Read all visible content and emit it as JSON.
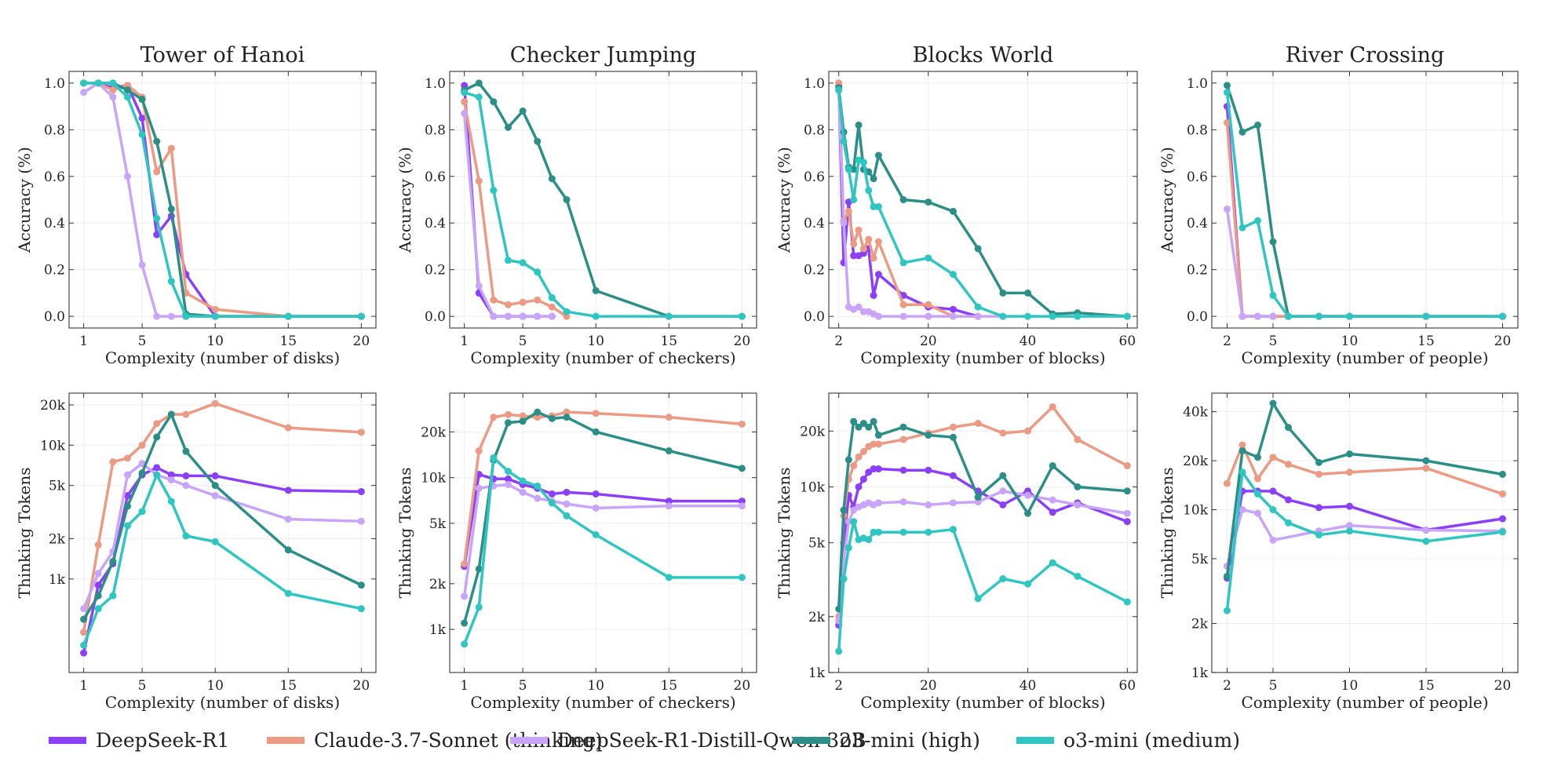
{
  "colors": {
    "DeepSeek-R1": "#8b3ffb",
    "Claude-3.7-Sonnet (thinking)": "#ec9a84",
    "DeepSeek-R1-Distill-Qwen-32B": "#c9a4fb",
    "o3-mini (high)": "#2b8f87",
    "o3-mini (medium)": "#2fc6c1"
  },
  "legend": {
    "placement": "bottom",
    "items": [
      "DeepSeek-R1",
      "Claude-3.7-Sonnet (thinking)",
      "DeepSeek-R1-Distill-Qwen-32B",
      "o3-mini (high)",
      "o3-mini (medium)"
    ]
  },
  "chart_data": [
    {
      "type": "line",
      "title": "Tower of Hanoi",
      "xlabel": "Complexity (number of disks)",
      "ylabel": "Accuracy (%)",
      "xlim": [
        0,
        21
      ],
      "ylim": [
        -0.05,
        1.05
      ],
      "yscale": "linear",
      "grid": true,
      "xticks": [
        1,
        5,
        10,
        15,
        20
      ],
      "xtick_labels": [
        "1",
        "5",
        "10",
        "15",
        "20"
      ],
      "yticks": [
        0,
        0.2,
        0.4,
        0.6,
        0.8,
        1.0
      ],
      "ytick_labels": [
        "0.0",
        "0.2",
        "0.4",
        "0.6",
        "0.8",
        "1.0"
      ],
      "x": [
        1,
        2,
        3,
        4,
        5,
        6,
        7,
        8,
        10,
        15,
        20
      ],
      "series": [
        {
          "name": "DeepSeek-R1",
          "values": [
            1,
            1,
            0.98,
            0.99,
            0.85,
            0.35,
            0.43,
            0.18,
            0,
            0,
            0
          ]
        },
        {
          "name": "Claude-3.7-Sonnet (thinking)",
          "values": [
            1,
            1,
            0.97,
            0.99,
            0.94,
            0.62,
            0.72,
            0.1,
            0.03,
            0,
            0
          ]
        },
        {
          "name": "DeepSeek-R1-Distill-Qwen-32B",
          "values": [
            0.96,
            1,
            0.94,
            0.6,
            0.22,
            0,
            0,
            0,
            0,
            0,
            0
          ]
        },
        {
          "name": "o3-mini (high)",
          "values": [
            1,
            1,
            1,
            0.97,
            0.93,
            0.75,
            0.46,
            0.01,
            0,
            0,
            0
          ]
        },
        {
          "name": "o3-mini (medium)",
          "values": [
            1,
            1,
            1,
            0.94,
            0.78,
            0.42,
            0.15,
            0,
            0,
            0,
            0
          ]
        }
      ]
    },
    {
      "type": "line",
      "title": "Checker Jumping",
      "xlabel": "Complexity (number of checkers)",
      "ylabel": "Accuracy (%)",
      "xlim": [
        0,
        21
      ],
      "ylim": [
        -0.05,
        1.05
      ],
      "yscale": "linear",
      "grid": true,
      "xticks": [
        1,
        5,
        10,
        15,
        20
      ],
      "xtick_labels": [
        "1",
        "5",
        "10",
        "15",
        "20"
      ],
      "yticks": [
        0,
        0.2,
        0.4,
        0.6,
        0.8,
        1.0
      ],
      "ytick_labels": [
        "0.0",
        "0.2",
        "0.4",
        "0.6",
        "0.8",
        "1.0"
      ],
      "x": [
        1,
        2,
        3,
        4,
        5,
        6,
        7,
        8,
        10,
        15,
        20
      ],
      "series": [
        {
          "name": "DeepSeek-R1",
          "values": [
            0.99,
            0.1,
            0,
            0,
            0,
            0,
            0,
            null,
            null,
            null,
            null
          ]
        },
        {
          "name": "Claude-3.7-Sonnet (thinking)",
          "values": [
            0.92,
            0.58,
            0.07,
            0.05,
            0.06,
            0.07,
            0.04,
            0,
            null,
            null,
            null
          ]
        },
        {
          "name": "DeepSeek-R1-Distill-Qwen-32B",
          "values": [
            0.87,
            0.13,
            0,
            0,
            0,
            0,
            0,
            null,
            null,
            null,
            null
          ]
        },
        {
          "name": "o3-mini (high)",
          "values": [
            0.97,
            1,
            0.92,
            0.81,
            0.88,
            0.75,
            0.59,
            0.5,
            0.11,
            0,
            0
          ]
        },
        {
          "name": "o3-mini (medium)",
          "values": [
            0.96,
            0.94,
            0.54,
            0.24,
            0.23,
            0.19,
            0.08,
            0.02,
            0,
            0,
            0
          ]
        }
      ]
    },
    {
      "type": "line",
      "title": "Blocks World",
      "xlabel": "Complexity (number of blocks)",
      "ylabel": "Accuracy (%)",
      "xlim": [
        0,
        62
      ],
      "ylim": [
        -0.05,
        1.05
      ],
      "yscale": "linear",
      "grid": true,
      "xticks": [
        2,
        20,
        40,
        60
      ],
      "xtick_labels": [
        "2",
        "20",
        "40",
        "60"
      ],
      "yticks": [
        0,
        0.2,
        0.4,
        0.6,
        0.8,
        1.0
      ],
      "ytick_labels": [
        "0.0",
        "0.2",
        "0.4",
        "0.6",
        "0.8",
        "1.0"
      ],
      "x": [
        2,
        3,
        4,
        5,
        6,
        7,
        8,
        9,
        10,
        15,
        20,
        25,
        30,
        35,
        40,
        45,
        50,
        60
      ],
      "series": [
        {
          "name": "DeepSeek-R1",
          "values": [
            0.99,
            0.23,
            0.49,
            0.26,
            0.26,
            0.27,
            0.29,
            0.09,
            0.18,
            0.09,
            0.04,
            0.03,
            0,
            null,
            null,
            null,
            null,
            null
          ]
        },
        {
          "name": "Claude-3.7-Sonnet (thinking)",
          "values": [
            1.0,
            0.41,
            0.45,
            0.31,
            0.37,
            0.29,
            0.33,
            0.25,
            0.32,
            0.05,
            0.05,
            0,
            0,
            null,
            null,
            null,
            null,
            null
          ]
        },
        {
          "name": "DeepSeek-R1-Distill-Qwen-32B",
          "values": [
            0.97,
            0.4,
            0.04,
            0.03,
            0.04,
            0.02,
            0.02,
            0.01,
            0,
            0,
            0,
            0,
            0,
            0,
            null,
            null,
            null,
            null
          ]
        },
        {
          "name": "o3-mini (high)",
          "values": [
            0.98,
            0.79,
            0.64,
            0.63,
            0.82,
            0.63,
            0.62,
            0.59,
            0.69,
            0.5,
            0.49,
            0.45,
            0.29,
            0.1,
            0.1,
            0.01,
            0.015,
            0
          ]
        },
        {
          "name": "o3-mini (medium)",
          "values": [
            0.97,
            0.75,
            0.63,
            0.5,
            0.67,
            0.66,
            0.54,
            0.47,
            0.47,
            0.23,
            0.25,
            0.18,
            0.04,
            0,
            0,
            0,
            0,
            0
          ]
        }
      ]
    },
    {
      "type": "line",
      "title": "River Crossing",
      "xlabel": "Complexity (number of people)",
      "ylabel": "Accuracy (%)",
      "xlim": [
        1,
        21
      ],
      "ylim": [
        -0.05,
        1.05
      ],
      "yscale": "linear",
      "grid": true,
      "xticks": [
        2,
        5,
        10,
        15,
        20
      ],
      "xtick_labels": [
        "2",
        "5",
        "10",
        "15",
        "20"
      ],
      "yticks": [
        0,
        0.2,
        0.4,
        0.6,
        0.8,
        1.0
      ],
      "ytick_labels": [
        "0.0",
        "0.2",
        "0.4",
        "0.6",
        "0.8",
        "1.0"
      ],
      "x": [
        2,
        3,
        4,
        5,
        6,
        8,
        10,
        15,
        20
      ],
      "series": [
        {
          "name": "DeepSeek-R1",
          "values": [
            0.9,
            0,
            0,
            0,
            0,
            0,
            0,
            0,
            0
          ]
        },
        {
          "name": "Claude-3.7-Sonnet (thinking)",
          "values": [
            0.83,
            0,
            0,
            0,
            0,
            0,
            0,
            0,
            0
          ]
        },
        {
          "name": "DeepSeek-R1-Distill-Qwen-32B",
          "values": [
            0.46,
            0,
            0,
            0,
            null,
            null,
            null,
            null,
            null
          ]
        },
        {
          "name": "o3-mini (high)",
          "values": [
            0.99,
            0.79,
            0.82,
            0.32,
            0,
            0,
            0,
            0,
            0
          ]
        },
        {
          "name": "o3-mini (medium)",
          "values": [
            0.96,
            0.38,
            0.41,
            0.09,
            0,
            0,
            0,
            0,
            0
          ]
        }
      ]
    },
    {
      "type": "line",
      "title": "",
      "xlabel": "Complexity (number of disks)",
      "ylabel": "Thinking Tokens",
      "xlim": [
        0,
        21
      ],
      "ylim": [
        200,
        24500
      ],
      "yscale": "log",
      "grid": true,
      "xticks": [
        1,
        5,
        10,
        15,
        20
      ],
      "xtick_labels": [
        "1",
        "5",
        "10",
        "15",
        "20"
      ],
      "yticks": [
        1000,
        2000,
        5000,
        10000,
        20000
      ],
      "ytick_labels": [
        "1k",
        "2k",
        "5k",
        "10k",
        "20k"
      ],
      "x": [
        1,
        2,
        3,
        4,
        5,
        6,
        7,
        8,
        10,
        15,
        20
      ],
      "series": [
        {
          "name": "DeepSeek-R1",
          "values": [
            280,
            900,
            1300,
            4200,
            6000,
            6800,
            6000,
            5900,
            5900,
            4600,
            4500
          ]
        },
        {
          "name": "Claude-3.7-Sonnet (thinking)",
          "values": [
            400,
            1800,
            7500,
            8000,
            10000,
            14500,
            17000,
            17000,
            20500,
            13500,
            12500
          ]
        },
        {
          "name": "DeepSeek-R1-Distill-Qwen-32B",
          "values": [
            600,
            1100,
            1600,
            6000,
            7300,
            6000,
            5500,
            5000,
            4200,
            2800,
            2700
          ]
        },
        {
          "name": "o3-mini (high)",
          "values": [
            500,
            750,
            1350,
            3500,
            6200,
            11500,
            17000,
            9000,
            5000,
            1650,
            900
          ]
        },
        {
          "name": "o3-mini (medium)",
          "values": [
            320,
            600,
            750,
            2500,
            3200,
            6000,
            3800,
            2100,
            1900,
            780,
            600
          ]
        }
      ]
    },
    {
      "type": "line",
      "title": "",
      "xlabel": "Complexity (number of checkers)",
      "ylabel": "Thinking Tokens",
      "xlim": [
        0,
        21
      ],
      "ylim": [
        520,
        36000
      ],
      "yscale": "log",
      "grid": true,
      "xticks": [
        1,
        5,
        10,
        15,
        20
      ],
      "xtick_labels": [
        "1",
        "5",
        "10",
        "15",
        "20"
      ],
      "yticks": [
        1000,
        2000,
        5000,
        10000,
        20000
      ],
      "ytick_labels": [
        "1k",
        "2k",
        "5k",
        "10k",
        "20k"
      ],
      "x": [
        1,
        2,
        3,
        4,
        5,
        6,
        7,
        8,
        10,
        15,
        20
      ],
      "series": [
        {
          "name": "DeepSeek-R1",
          "values": [
            2600,
            10500,
            9800,
            9800,
            9000,
            8500,
            7800,
            8000,
            7800,
            7000,
            7000
          ]
        },
        {
          "name": "Claude-3.7-Sonnet (thinking)",
          "values": [
            2700,
            15000,
            25000,
            26000,
            25500,
            25000,
            25500,
            27000,
            26500,
            25000,
            22500
          ]
        },
        {
          "name": "DeepSeek-R1-Distill-Qwen-32B",
          "values": [
            1650,
            8500,
            8800,
            9000,
            8000,
            7300,
            7000,
            6700,
            6300,
            6500,
            6500
          ]
        },
        {
          "name": "o3-mini (high)",
          "values": [
            1100,
            2500,
            13000,
            23000,
            23500,
            27000,
            24500,
            25000,
            20000,
            15000,
            11500
          ]
        },
        {
          "name": "o3-mini (medium)",
          "values": [
            800,
            1400,
            13500,
            11000,
            9500,
            8800,
            6800,
            5600,
            4200,
            2200,
            2200
          ]
        }
      ]
    },
    {
      "type": "line",
      "title": "",
      "xlabel": "Complexity (number of blocks)",
      "ylabel": "Thinking Tokens",
      "xlim": [
        0,
        62
      ],
      "ylim": [
        1000,
        32000
      ],
      "yscale": "log",
      "grid": true,
      "xticks": [
        2,
        20,
        40,
        60
      ],
      "xtick_labels": [
        "2",
        "20",
        "40",
        "60"
      ],
      "yticks": [
        1000,
        2000,
        5000,
        10000,
        20000
      ],
      "ytick_labels": [
        "1k",
        "2k",
        "5k",
        "10k",
        "20k"
      ],
      "x": [
        2,
        3,
        4,
        5,
        6,
        7,
        8,
        9,
        10,
        15,
        20,
        25,
        30,
        35,
        40,
        45,
        50,
        60
      ],
      "series": [
        {
          "name": "DeepSeek-R1",
          "values": [
            1800,
            5000,
            9000,
            7800,
            10000,
            11000,
            12000,
            12500,
            12500,
            12300,
            12300,
            11500,
            9500,
            8000,
            9500,
            7300,
            8200,
            6500
          ]
        },
        {
          "name": "Claude-3.7-Sonnet (thinking)",
          "values": [
            2000,
            7000,
            11000,
            13000,
            14500,
            15500,
            16500,
            17000,
            17000,
            18000,
            19500,
            21000,
            22000,
            19500,
            20000,
            27000,
            18000,
            13000
          ]
        },
        {
          "name": "DeepSeek-R1-Distill-Qwen-32B",
          "values": [
            1900,
            4000,
            6500,
            7500,
            7800,
            8000,
            8200,
            8000,
            8200,
            8300,
            8000,
            8200,
            8300,
            9500,
            9000,
            8500,
            8000,
            7200
          ]
        },
        {
          "name": "o3-mini (high)",
          "values": [
            2200,
            7500,
            14000,
            22500,
            21000,
            22000,
            21000,
            22500,
            19000,
            21000,
            19000,
            18500,
            8800,
            11500,
            7200,
            13000,
            10000,
            9500
          ]
        },
        {
          "name": "o3-mini (medium)",
          "values": [
            1300,
            3200,
            4700,
            6500,
            5200,
            5300,
            5200,
            5700,
            5700,
            5700,
            5700,
            5900,
            2500,
            3200,
            3000,
            3900,
            3300,
            2400
          ]
        }
      ]
    },
    {
      "type": "line",
      "title": "",
      "xlabel": "Complexity (number of people)",
      "ylabel": "Thinking Tokens",
      "xlim": [
        1,
        21
      ],
      "ylim": [
        1000,
        52000
      ],
      "yscale": "log",
      "grid": true,
      "xticks": [
        2,
        5,
        10,
        15,
        20
      ],
      "xtick_labels": [
        "2",
        "5",
        "10",
        "15",
        "20"
      ],
      "yticks": [
        1000,
        2000,
        5000,
        10000,
        20000,
        40000
      ],
      "ytick_labels": [
        "1k",
        "2k",
        "5k",
        "10k",
        "20k",
        "40k"
      ],
      "x": [
        2,
        3,
        4,
        5,
        6,
        8,
        10,
        15,
        20
      ],
      "series": [
        {
          "name": "DeepSeek-R1",
          "values": [
            3800,
            13000,
            13000,
            13000,
            11500,
            10300,
            10500,
            7500,
            8800
          ]
        },
        {
          "name": "Claude-3.7-Sonnet (thinking)",
          "values": [
            14500,
            25000,
            15500,
            21000,
            19000,
            16500,
            17000,
            18000,
            12500
          ]
        },
        {
          "name": "DeepSeek-R1-Distill-Qwen-32B",
          "values": [
            4500,
            10000,
            9500,
            6500,
            null,
            7400,
            8000,
            7500,
            7400
          ]
        },
        {
          "name": "o3-mini (high)",
          "values": [
            3900,
            23000,
            21000,
            45000,
            32000,
            19500,
            22000,
            20000,
            16500
          ]
        },
        {
          "name": "o3-mini (medium)",
          "values": [
            2400,
            17000,
            12500,
            10000,
            8300,
            7000,
            7400,
            6400,
            7300
          ]
        }
      ]
    }
  ]
}
